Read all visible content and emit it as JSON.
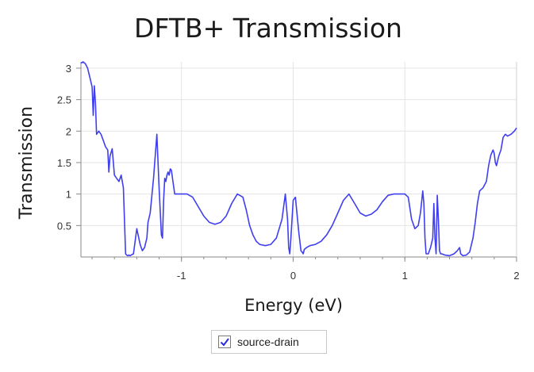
{
  "chart_data": {
    "type": "line",
    "title": "DFTB+ Transmission",
    "xlabel": "Energy (eV)",
    "ylabel": "Transmission",
    "xlim": [
      -1.9,
      2.0
    ],
    "ylim": [
      0.0,
      3.1
    ],
    "xticks": [
      -1,
      0,
      1,
      2
    ],
    "yticks": [
      0.5,
      1,
      1.5,
      2,
      2.5,
      3
    ],
    "grid": true,
    "legend": "bottom-center",
    "series": [
      {
        "name": "source-drain",
        "color": "#3f3ff0",
        "x": [
          -1.9,
          -1.88,
          -1.86,
          -1.84,
          -1.82,
          -1.8,
          -1.79,
          -1.78,
          -1.77,
          -1.76,
          -1.74,
          -1.72,
          -1.7,
          -1.68,
          -1.66,
          -1.65,
          -1.64,
          -1.62,
          -1.6,
          -1.58,
          -1.56,
          -1.54,
          -1.52,
          -1.5,
          -1.49,
          -1.48,
          -1.47,
          -1.46,
          -1.45,
          -1.43,
          -1.4,
          -1.37,
          -1.35,
          -1.33,
          -1.31,
          -1.3,
          -1.28,
          -1.25,
          -1.22,
          -1.2,
          -1.18,
          -1.17,
          -1.16,
          -1.15,
          -1.14,
          -1.13,
          -1.12,
          -1.11,
          -1.1,
          -1.09,
          -1.08,
          -1.06,
          -1.04,
          -1.02,
          -1.0,
          -0.98,
          -0.95,
          -0.9,
          -0.85,
          -0.8,
          -0.75,
          -0.7,
          -0.65,
          -0.6,
          -0.55,
          -0.5,
          -0.45,
          -0.42,
          -0.39,
          -0.36,
          -0.33,
          -0.3,
          -0.25,
          -0.2,
          -0.15,
          -0.1,
          -0.07,
          -0.05,
          -0.04,
          -0.03,
          -0.02,
          0.0,
          0.02,
          0.05,
          0.07,
          0.08,
          0.09,
          0.1,
          0.12,
          0.15,
          0.2,
          0.25,
          0.3,
          0.35,
          0.4,
          0.45,
          0.5,
          0.55,
          0.6,
          0.65,
          0.7,
          0.75,
          0.8,
          0.85,
          0.9,
          0.95,
          1.0,
          1.03,
          1.06,
          1.09,
          1.12,
          1.14,
          1.16,
          1.17,
          1.18,
          1.19,
          1.21,
          1.23,
          1.25,
          1.26,
          1.27,
          1.28,
          1.29,
          1.3,
          1.31,
          1.32,
          1.33,
          1.36,
          1.4,
          1.44,
          1.47,
          1.49,
          1.5,
          1.52,
          1.55,
          1.58,
          1.61,
          1.63,
          1.65,
          1.67,
          1.7,
          1.73,
          1.75,
          1.77,
          1.79,
          1.8,
          1.81,
          1.82,
          1.84,
          1.86,
          1.88,
          1.9,
          1.92,
          1.95,
          1.98,
          2.0
        ],
        "y": [
          3.08,
          3.1,
          3.07,
          3.0,
          2.85,
          2.7,
          2.25,
          2.72,
          2.45,
          1.95,
          2.0,
          1.95,
          1.85,
          1.75,
          1.7,
          1.35,
          1.6,
          1.72,
          1.3,
          1.25,
          1.2,
          1.3,
          1.1,
          0.05,
          0.03,
          0.02,
          0.03,
          0.02,
          0.03,
          0.05,
          0.45,
          0.2,
          0.1,
          0.15,
          0.3,
          0.55,
          0.7,
          1.25,
          1.95,
          1.1,
          0.35,
          0.3,
          0.9,
          1.25,
          1.2,
          1.3,
          1.35,
          1.3,
          1.4,
          1.38,
          1.25,
          1.0,
          1.0,
          1.0,
          1.0,
          1.0,
          1.0,
          0.95,
          0.8,
          0.65,
          0.55,
          0.52,
          0.55,
          0.65,
          0.85,
          1.0,
          0.95,
          0.75,
          0.5,
          0.35,
          0.25,
          0.2,
          0.18,
          0.2,
          0.3,
          0.6,
          1.0,
          0.6,
          0.15,
          0.05,
          0.3,
          0.9,
          0.95,
          0.4,
          0.1,
          0.08,
          0.05,
          0.12,
          0.15,
          0.18,
          0.2,
          0.25,
          0.35,
          0.5,
          0.7,
          0.9,
          1.0,
          0.85,
          0.7,
          0.65,
          0.68,
          0.75,
          0.88,
          0.98,
          1.0,
          1.0,
          1.0,
          0.95,
          0.6,
          0.45,
          0.5,
          0.7,
          1.05,
          0.85,
          0.3,
          0.05,
          0.05,
          0.15,
          0.3,
          0.85,
          0.3,
          0.05,
          0.98,
          0.6,
          0.1,
          0.05,
          0.05,
          0.03,
          0.02,
          0.05,
          0.1,
          0.15,
          0.05,
          0.02,
          0.03,
          0.08,
          0.3,
          0.55,
          0.85,
          1.05,
          1.1,
          1.2,
          1.45,
          1.62,
          1.7,
          1.65,
          1.5,
          1.45,
          1.6,
          1.7,
          1.9,
          1.95,
          1.92,
          1.95,
          2.0,
          2.05
        ]
      }
    ]
  }
}
